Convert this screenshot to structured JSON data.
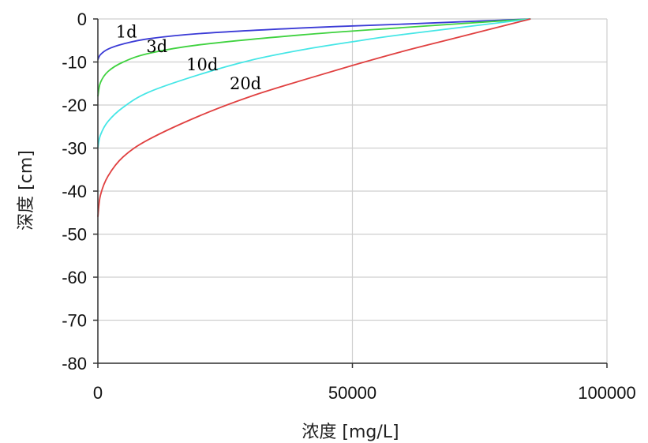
{
  "chart_data": {
    "type": "line",
    "title": "",
    "xlabel": "浓度 [mg/L]",
    "ylabel": "深度 [cm]",
    "xlim": [
      0,
      100000
    ],
    "ylim": [
      -80,
      0
    ],
    "x_ticks": [
      0,
      50000,
      100000
    ],
    "y_ticks": [
      0,
      -10,
      -20,
      -30,
      -40,
      -50,
      -60,
      -70,
      -80
    ],
    "grid": true,
    "series": [
      {
        "name": "1d",
        "color": "#3b3bd6",
        "points": [
          [
            85000,
            0
          ],
          [
            60000,
            -1.2
          ],
          [
            40000,
            -2.1
          ],
          [
            20000,
            -3.4
          ],
          [
            10000,
            -4.6
          ],
          [
            5000,
            -5.8
          ],
          [
            2000,
            -7.0
          ],
          [
            500,
            -8.3
          ],
          [
            0,
            -9.5
          ]
        ]
      },
      {
        "name": "3d",
        "color": "#3fd23f",
        "points": [
          [
            85000,
            0
          ],
          [
            60000,
            -2.0
          ],
          [
            40000,
            -3.7
          ],
          [
            20000,
            -6.0
          ],
          [
            10000,
            -8.0
          ],
          [
            5000,
            -10.0
          ],
          [
            2000,
            -12.2
          ],
          [
            500,
            -14.8
          ],
          [
            0,
            -18.0
          ]
        ]
      },
      {
        "name": "10d",
        "color": "#45e6e6",
        "points": [
          [
            85000,
            0
          ],
          [
            60000,
            -3.6
          ],
          [
            50000,
            -5.3
          ],
          [
            40000,
            -7.2
          ],
          [
            30000,
            -9.6
          ],
          [
            20000,
            -12.9
          ],
          [
            10000,
            -17.0
          ],
          [
            5000,
            -20.5
          ],
          [
            2000,
            -23.8
          ],
          [
            500,
            -27.0
          ],
          [
            0,
            -30.0
          ]
        ]
      },
      {
        "name": "20d",
        "color": "#e04040",
        "points": [
          [
            85000,
            0
          ],
          [
            70000,
            -4.5
          ],
          [
            60000,
            -7.5
          ],
          [
            50000,
            -10.8
          ],
          [
            40000,
            -14.3
          ],
          [
            30000,
            -18.0
          ],
          [
            20000,
            -22.5
          ],
          [
            10000,
            -28.0
          ],
          [
            5000,
            -32.0
          ],
          [
            2000,
            -36.5
          ],
          [
            500,
            -41.0
          ],
          [
            0,
            -46.0
          ]
        ]
      }
    ],
    "annotations": [
      {
        "text": "1d",
        "x": 5600,
        "y": -4.3
      },
      {
        "text": "3d",
        "x": 11600,
        "y": -7.7
      },
      {
        "text": "10d",
        "x": 20500,
        "y": -11.9
      },
      {
        "text": "20d",
        "x": 29000,
        "y": -16.3
      }
    ]
  }
}
